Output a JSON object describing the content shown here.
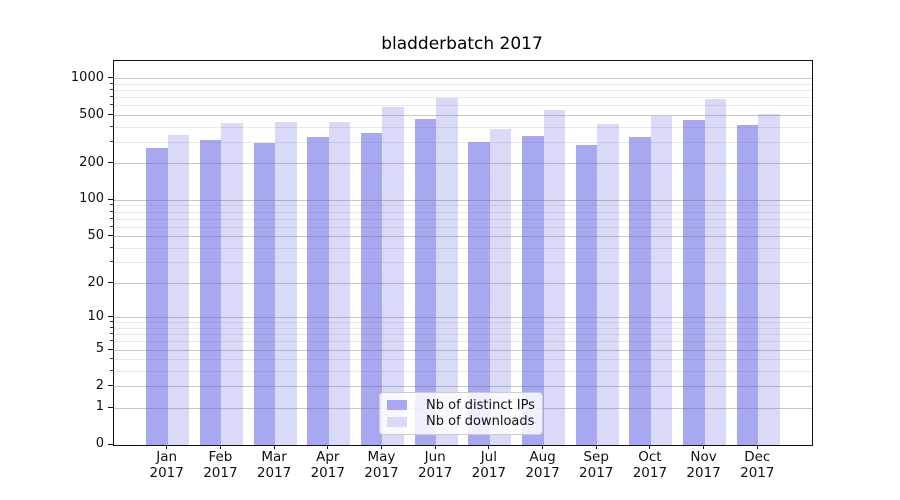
{
  "title": "bladderbatch 2017",
  "chart_data": {
    "type": "bar",
    "title": "bladderbatch 2017",
    "categories": [
      {
        "month": "Jan",
        "year": "2017"
      },
      {
        "month": "Feb",
        "year": "2017"
      },
      {
        "month": "Mar",
        "year": "2017"
      },
      {
        "month": "Apr",
        "year": "2017"
      },
      {
        "month": "May",
        "year": "2017"
      },
      {
        "month": "Jun",
        "year": "2017"
      },
      {
        "month": "Jul",
        "year": "2017"
      },
      {
        "month": "Aug",
        "year": "2017"
      },
      {
        "month": "Sep",
        "year": "2017"
      },
      {
        "month": "Oct",
        "year": "2017"
      },
      {
        "month": "Nov",
        "year": "2017"
      },
      {
        "month": "Dec",
        "year": "2017"
      }
    ],
    "series": [
      {
        "name": "Nb of distinct IPs",
        "color": "#a8a8f0",
        "values": [
          272,
          315,
          296,
          332,
          358,
          468,
          304,
          340,
          286,
          336,
          462,
          420
        ]
      },
      {
        "name": "Nb of downloads",
        "color": "#d9d9f8",
        "values": [
          345,
          433,
          441,
          444,
          590,
          700,
          384,
          560,
          425,
          500,
          682,
          516
        ]
      }
    ],
    "xlabel": "",
    "ylabel": "",
    "y_scale": "log1p",
    "y_ticks": [
      0,
      1,
      2,
      5,
      10,
      20,
      50,
      100,
      200,
      500,
      1000
    ],
    "y_minor_ticks": [
      3,
      4,
      6,
      7,
      8,
      9,
      30,
      40,
      60,
      70,
      80,
      90,
      300,
      400,
      600,
      700,
      800,
      900
    ],
    "ylim": [
      0,
      1400
    ],
    "grid": "both",
    "legend_position": "lower center",
    "plot_background": "#ffffff",
    "major_grid_color": "#cccccc",
    "minor_grid_color": "#ececec"
  }
}
